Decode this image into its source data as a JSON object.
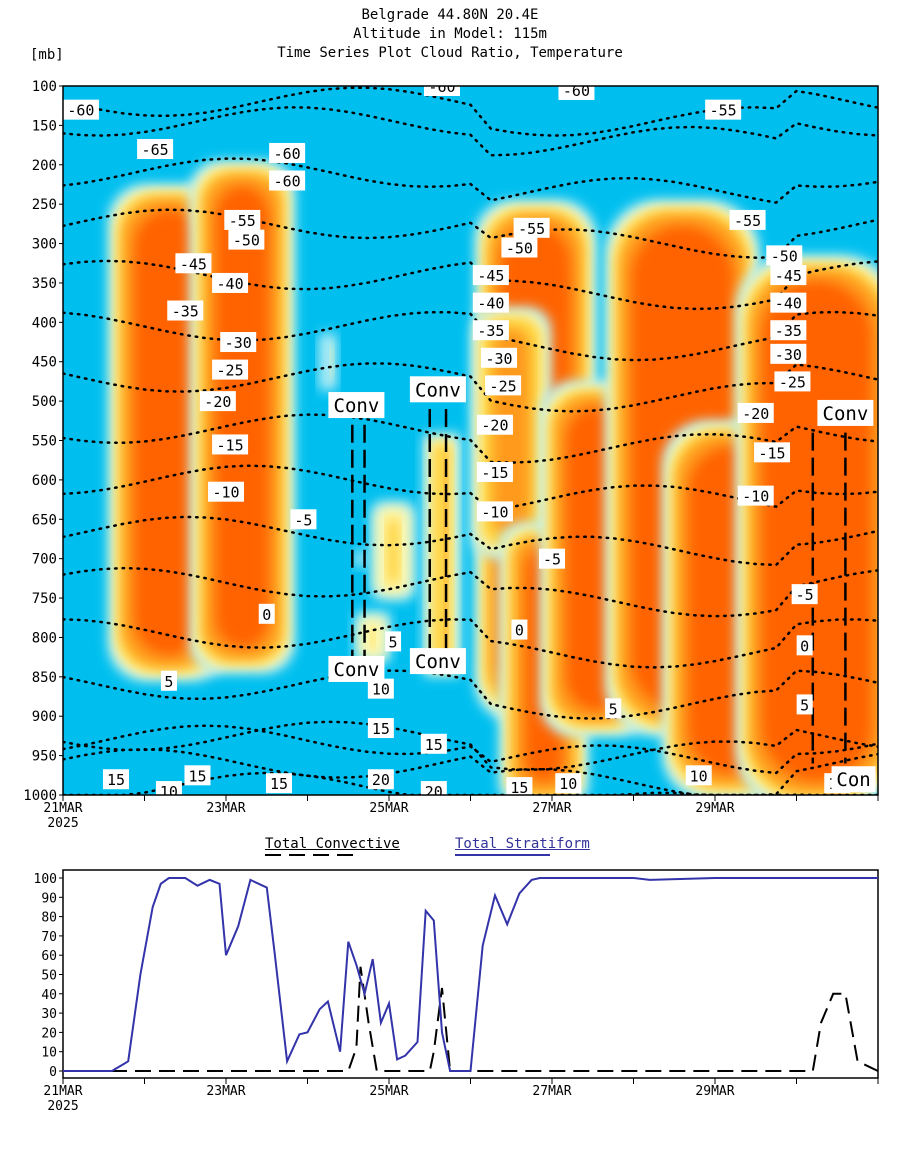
{
  "title_lines": [
    "Belgrade   44.80N 20.4E",
    "Altitude in Model: 115m",
    "Time Series Plot Cloud Ratio, Temperature"
  ],
  "y_unit": "[mb]",
  "colors": {
    "background": "#00bfef",
    "cloud_light": "#b3ecf5",
    "cloud_pale": "#fff7a8",
    "cloud_yellow": "#ffd23c",
    "cloud_orange": "#ff9a1e",
    "cloud_core": "#ff6400",
    "contour": "#000000",
    "stratiform": "#3333aa",
    "convective": "#000000"
  },
  "chart_data": [
    {
      "type": "heatmap",
      "title": "Time Series Plot Cloud Ratio, Temperature",
      "ylabel": "[mb]",
      "xlim": [
        0,
        10
      ],
      "ylim": [
        1000,
        100
      ],
      "x_ticks": [
        {
          "x": 0,
          "label": "21MAR",
          "sub": "2025"
        },
        {
          "x": 2,
          "label": "23MAR"
        },
        {
          "x": 4,
          "label": "25MAR"
        },
        {
          "x": 6,
          "label": "27MAR"
        },
        {
          "x": 8,
          "label": "29MAR"
        }
      ],
      "y_ticks": [
        100,
        150,
        200,
        250,
        300,
        350,
        400,
        450,
        500,
        550,
        600,
        650,
        700,
        750,
        800,
        850,
        900,
        950,
        1000
      ],
      "cloud_regions": [
        {
          "x0": 0.8,
          "x1": 1.8,
          "p0": 250,
          "p1": 830,
          "level": "core"
        },
        {
          "x0": 1.8,
          "x1": 2.6,
          "p0": 220,
          "p1": 820,
          "level": "core"
        },
        {
          "x0": 3.2,
          "x1": 3.3,
          "p0": 420,
          "p1": 480,
          "level": "pale"
        },
        {
          "x0": 3.5,
          "x1": 3.8,
          "p0": 680,
          "p1": 720,
          "level": "light"
        },
        {
          "x0": 3.7,
          "x1": 3.9,
          "p0": 780,
          "p1": 820,
          "level": "yellow"
        },
        {
          "x0": 3.9,
          "x1": 4.2,
          "p0": 640,
          "p1": 740,
          "level": "yellow"
        },
        {
          "x0": 4.6,
          "x1": 4.7,
          "p0": 560,
          "p1": 830,
          "level": "orange"
        },
        {
          "x0": 5.3,
          "x1": 6.3,
          "p0": 270,
          "p1": 880,
          "level": "core"
        },
        {
          "x0": 5.2,
          "x1": 5.8,
          "p0": 400,
          "p1": 680,
          "level": "orange"
        },
        {
          "x0": 5.6,
          "x1": 6.2,
          "p0": 680,
          "p1": 990,
          "level": "core"
        },
        {
          "x0": 6.1,
          "x1": 7.0,
          "p0": 500,
          "p1": 900,
          "level": "core"
        },
        {
          "x0": 6.9,
          "x1": 8.3,
          "p0": 270,
          "p1": 900,
          "level": "core"
        },
        {
          "x0": 7.6,
          "x1": 8.8,
          "p0": 550,
          "p1": 980,
          "level": "core"
        },
        {
          "x0": 8.5,
          "x1": 10,
          "p0": 340,
          "p1": 990,
          "level": "core"
        }
      ],
      "temperature_contours": [
        {
          "value": -60,
          "label": "-60"
        },
        {
          "value": -55,
          "label": "-55"
        },
        {
          "value": -50,
          "label": "-50"
        },
        {
          "value": -45,
          "label": "-45"
        },
        {
          "value": -40,
          "label": "-40"
        },
        {
          "value": -35,
          "label": "-35"
        },
        {
          "value": -30,
          "label": "-30"
        },
        {
          "value": -25,
          "label": "-25"
        },
        {
          "value": -20,
          "label": "-20"
        },
        {
          "value": -15,
          "label": "-15"
        },
        {
          "value": -10,
          "label": "-10"
        },
        {
          "value": -5,
          "label": "-5"
        },
        {
          "value": 0,
          "label": "0"
        },
        {
          "value": 5,
          "label": "5"
        },
        {
          "value": 10,
          "label": "10"
        },
        {
          "value": 15,
          "label": "15"
        },
        {
          "value": 20,
          "label": "20"
        }
      ],
      "contour_labels": [
        {
          "text": "-60",
          "x": 0.22,
          "p": 130
        },
        {
          "text": "-60",
          "x": 4.65,
          "p": 100
        },
        {
          "text": "-60",
          "x": 6.3,
          "p": 105
        },
        {
          "text": "-55",
          "x": 8.1,
          "p": 130
        },
        {
          "text": "-65",
          "x": 1.13,
          "p": 180
        },
        {
          "text": "-60",
          "x": 2.75,
          "p": 185
        },
        {
          "text": "-60",
          "x": 2.75,
          "p": 220
        },
        {
          "text": "-55",
          "x": 2.2,
          "p": 270
        },
        {
          "text": "-50",
          "x": 2.25,
          "p": 295
        },
        {
          "text": "-55",
          "x": 5.75,
          "p": 280
        },
        {
          "text": "-55",
          "x": 8.4,
          "p": 270
        },
        {
          "text": "-50",
          "x": 5.6,
          "p": 305
        },
        {
          "text": "-50",
          "x": 8.85,
          "p": 315
        },
        {
          "text": "-45",
          "x": 1.6,
          "p": 325
        },
        {
          "text": "-45",
          "x": 5.25,
          "p": 340
        },
        {
          "text": "-45",
          "x": 8.9,
          "p": 340
        },
        {
          "text": "-40",
          "x": 2.05,
          "p": 350
        },
        {
          "text": "-40",
          "x": 5.25,
          "p": 375
        },
        {
          "text": "-40",
          "x": 8.9,
          "p": 375
        },
        {
          "text": "-35",
          "x": 1.5,
          "p": 385
        },
        {
          "text": "-35",
          "x": 5.25,
          "p": 410
        },
        {
          "text": "-35",
          "x": 8.9,
          "p": 410
        },
        {
          "text": "-30",
          "x": 2.15,
          "p": 425
        },
        {
          "text": "-30",
          "x": 5.35,
          "p": 445
        },
        {
          "text": "-30",
          "x": 8.9,
          "p": 440
        },
        {
          "text": "-25",
          "x": 2.05,
          "p": 460
        },
        {
          "text": "-25",
          "x": 5.4,
          "p": 480
        },
        {
          "text": "-25",
          "x": 8.95,
          "p": 475
        },
        {
          "text": "-20",
          "x": 1.9,
          "p": 500
        },
        {
          "text": "-20",
          "x": 5.3,
          "p": 530
        },
        {
          "text": "-20",
          "x": 8.5,
          "p": 515
        },
        {
          "text": "-15",
          "x": 2.05,
          "p": 555
        },
        {
          "text": "-15",
          "x": 5.3,
          "p": 590
        },
        {
          "text": "-15",
          "x": 8.7,
          "p": 565
        },
        {
          "text": "-10",
          "x": 2.0,
          "p": 615
        },
        {
          "text": "-10",
          "x": 5.3,
          "p": 640
        },
        {
          "text": "-10",
          "x": 8.5,
          "p": 620
        },
        {
          "text": "-5",
          "x": 2.95,
          "p": 650
        },
        {
          "text": "-5",
          "x": 6.0,
          "p": 700
        },
        {
          "text": "-5",
          "x": 9.1,
          "p": 745
        },
        {
          "text": "0",
          "x": 2.5,
          "p": 770
        },
        {
          "text": "0",
          "x": 5.6,
          "p": 790
        },
        {
          "text": "0",
          "x": 9.1,
          "p": 810
        },
        {
          "text": "5",
          "x": 4.05,
          "p": 805
        },
        {
          "text": "5",
          "x": 1.3,
          "p": 855
        },
        {
          "text": "5",
          "x": 6.75,
          "p": 890
        },
        {
          "text": "5",
          "x": 9.1,
          "p": 885
        },
        {
          "text": "10",
          "x": 3.9,
          "p": 865
        },
        {
          "text": "15",
          "x": 3.9,
          "p": 915
        },
        {
          "text": "15",
          "x": 4.55,
          "p": 935
        },
        {
          "text": "20",
          "x": 3.9,
          "p": 980
        },
        {
          "text": "15",
          "x": 0.65,
          "p": 980
        },
        {
          "text": "15",
          "x": 1.65,
          "p": 975
        },
        {
          "text": "10",
          "x": 1.3,
          "p": 995
        },
        {
          "text": "15",
          "x": 2.65,
          "p": 985
        },
        {
          "text": "20",
          "x": 4.55,
          "p": 995
        },
        {
          "text": "15",
          "x": 5.6,
          "p": 990
        },
        {
          "text": "10",
          "x": 6.2,
          "p": 985
        },
        {
          "text": "10",
          "x": 7.8,
          "p": 975
        },
        {
          "text": "10",
          "x": 9.5,
          "p": 985
        }
      ],
      "conv_labels": [
        {
          "text": "Conv",
          "x": 3.6,
          "p": 505
        },
        {
          "text": "Conv",
          "x": 4.6,
          "p": 485
        },
        {
          "text": "Conv",
          "x": 9.6,
          "p": 515
        },
        {
          "text": "Conv",
          "x": 3.6,
          "p": 840
        },
        {
          "text": "Conv",
          "x": 4.6,
          "p": 830
        },
        {
          "text": "Con",
          "x": 9.7,
          "p": 980
        }
      ],
      "conv_boxes": [
        {
          "x0": 3.55,
          "x1": 3.7,
          "p0": 530,
          "p1": 830
        },
        {
          "x0": 4.5,
          "x1": 4.7,
          "p0": 510,
          "p1": 820
        },
        {
          "x0": 9.2,
          "x1": 9.6,
          "p0": 540,
          "p1": 960
        }
      ]
    },
    {
      "type": "line",
      "xlim": [
        0,
        10
      ],
      "ylim": [
        0,
        100
      ],
      "y_ticks": [
        0,
        10,
        20,
        30,
        40,
        50,
        60,
        70,
        80,
        90,
        100
      ],
      "x_ticks": [
        {
          "x": 0,
          "label": "21MAR",
          "sub": "2025"
        },
        {
          "x": 2,
          "label": "23MAR"
        },
        {
          "x": 4,
          "label": "25MAR"
        },
        {
          "x": 6,
          "label": "27MAR"
        },
        {
          "x": 8,
          "label": "29MAR"
        }
      ],
      "series": [
        {
          "name": "Total Convective",
          "style": "dashed",
          "x": [
            0,
            3.5,
            3.6,
            3.65,
            3.75,
            3.85,
            4.5,
            4.55,
            4.65,
            4.75,
            9.2,
            9.3,
            9.45,
            9.6,
            9.75,
            10
          ],
          "values": [
            0,
            0,
            12,
            54,
            25,
            0,
            0,
            10,
            43,
            0,
            0,
            25,
            40,
            40,
            5,
            0
          ]
        },
        {
          "name": "Total Stratiform",
          "style": "solid",
          "x": [
            0,
            0.3,
            0.6,
            0.8,
            0.95,
            1.1,
            1.2,
            1.3,
            1.5,
            1.65,
            1.8,
            1.92,
            2.0,
            2.15,
            2.3,
            2.5,
            2.6,
            2.75,
            2.9,
            3.0,
            3.15,
            3.25,
            3.4,
            3.5,
            3.6,
            3.7,
            3.8,
            3.9,
            4.0,
            4.1,
            4.2,
            4.35,
            4.45,
            4.55,
            4.65,
            4.75,
            4.85,
            5.0,
            5.15,
            5.3,
            5.45,
            5.6,
            5.75,
            5.85,
            6.0,
            7.0,
            7.2,
            8.0,
            9.0,
            10
          ],
          "values": [
            0,
            0,
            0,
            5,
            50,
            85,
            97,
            100,
            100,
            96,
            99,
            97,
            60,
            75,
            99,
            95,
            60,
            5,
            19,
            20,
            32,
            36,
            10,
            67,
            55,
            40,
            58,
            25,
            35,
            6,
            8,
            15,
            83,
            78,
            20,
            0,
            0,
            0,
            65,
            91,
            76,
            92,
            99,
            100,
            100,
            100,
            99,
            100,
            100,
            100
          ]
        }
      ]
    }
  ],
  "legend": {
    "convective": "Total Convective",
    "stratiform": "Total Stratiform"
  }
}
